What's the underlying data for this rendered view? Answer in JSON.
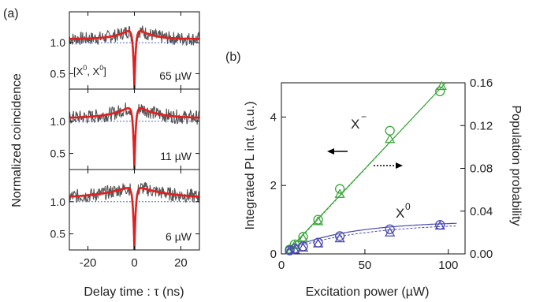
{
  "panel_labels": {
    "a": "(a)",
    "b": "(b)"
  },
  "chart_data": [
    {
      "type": "line",
      "panel": "(a)",
      "xlabel": "Delay time : τ (ns)",
      "ylabel": "Normalized coincidence",
      "xlim": [
        -28,
        28
      ],
      "xticks": [
        -20,
        0,
        20
      ],
      "yticks": [
        0.5,
        1.0
      ],
      "annotation": "[X0, X0]",
      "subpanels": [
        {
          "power_label": "65 µW",
          "ylim": [
            0.25,
            1.5
          ],
          "dip_min": 0.22,
          "peak": 1.28,
          "tail": 1.06,
          "rise_tau": 6,
          "dip_tau": 0.6,
          "baseline": 1.0
        },
        {
          "power_label": "11 µW",
          "ylim": [
            0.25,
            1.5
          ],
          "dip_min": 0.22,
          "peak": 1.28,
          "tail": 1.05,
          "rise_tau": 8,
          "dip_tau": 0.6,
          "baseline": 1.0
        },
        {
          "power_label": "6 µW",
          "ylim": [
            0.25,
            1.5
          ],
          "dip_min": 0.22,
          "peak": 1.26,
          "tail": 1.05,
          "rise_tau": 14,
          "dip_tau": 0.6,
          "baseline": 1.0
        }
      ]
    },
    {
      "type": "scatter",
      "panel": "(b)",
      "xlabel": "Excitation power (µW)",
      "ylabel": "Integrated PL int. (a.u.)",
      "ylabel_right": "Population probability",
      "xlim": [
        0,
        110
      ],
      "ylim": [
        0,
        5
      ],
      "ylim_right": [
        0,
        0.16
      ],
      "xticks": [
        0,
        50,
        100
      ],
      "yticks": [
        0,
        2,
        4
      ],
      "yticks_right": [
        "0.00",
        "0.04",
        "0.08",
        "0.12",
        "0.16"
      ],
      "series": [
        {
          "name": "X⁻",
          "color": "#3aa63a",
          "marker": "circle",
          "x": [
            5,
            8,
            13,
            22,
            35,
            65,
            95
          ],
          "y": [
            0.13,
            0.28,
            0.5,
            1.0,
            1.9,
            3.6,
            4.75
          ]
        },
        {
          "name": "X⁻",
          "color": "#3aa63a",
          "marker": "triangle",
          "x": [
            5,
            8,
            13,
            22,
            35,
            65,
            96
          ],
          "y": [
            0.12,
            0.25,
            0.45,
            0.95,
            1.75,
            3.35,
            4.9
          ]
        },
        {
          "name": "X0",
          "color": "#4a4ab0",
          "marker": "circle",
          "x": [
            5,
            8,
            13,
            22,
            35,
            65,
            95
          ],
          "y": [
            0.1,
            0.15,
            0.22,
            0.33,
            0.52,
            0.72,
            0.85
          ]
        },
        {
          "name": "X0",
          "color": "#4a4ab0",
          "marker": "triangle",
          "x": [
            5,
            8,
            13,
            22,
            35,
            65,
            95
          ],
          "y": [
            0.1,
            0.12,
            0.18,
            0.3,
            0.45,
            0.62,
            0.82
          ]
        }
      ],
      "labels": {
        "xminus": "X",
        "xminus_sup": "−",
        "x0": "X",
        "x0_sup": "0"
      }
    }
  ],
  "colors": {
    "fit": "#e02020",
    "data_gray": "#555555",
    "baseline": "#3355cc",
    "green": "#3aa63a",
    "blue": "#4a4ab0"
  }
}
